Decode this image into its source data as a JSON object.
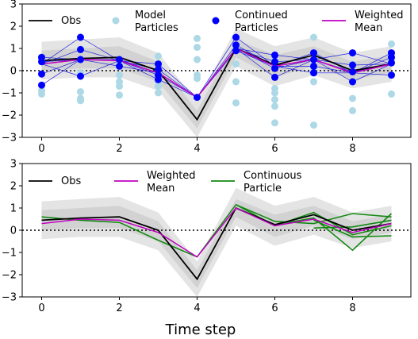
{
  "xlabel": "Time step",
  "chart_data": [
    {
      "type": "line",
      "x_ticks": [
        0,
        2,
        4,
        6,
        8
      ],
      "y_ticks": [
        -3,
        -2,
        -1,
        0,
        1,
        2,
        3
      ],
      "xlim": [
        -0.5,
        9.5
      ],
      "ylim": [
        -3,
        3
      ],
      "zero_line": "dotted",
      "legend": [
        {
          "key": "obs",
          "label": "Obs"
        },
        {
          "key": "model",
          "label": "Model\nParticles"
        },
        {
          "key": "continued",
          "label": "Continued\nParticles"
        },
        {
          "key": "weighted",
          "label": "Weighted\nMean"
        }
      ],
      "x": [
        0,
        1,
        2,
        3,
        4,
        5,
        6,
        7,
        8,
        9
      ],
      "series": [
        {
          "key": "obs",
          "color": "#000000",
          "values": [
            0.45,
            0.55,
            0.6,
            0.0,
            -2.2,
            1.0,
            0.25,
            0.7,
            0.0,
            0.3
          ]
        },
        {
          "key": "weighted",
          "color": "#c000c0",
          "values": [
            0.3,
            0.5,
            0.45,
            -0.1,
            -1.2,
            1.0,
            0.2,
            0.5,
            -0.1,
            0.3
          ]
        }
      ],
      "band": {
        "lower": [
          -0.4,
          -0.3,
          -0.3,
          -0.9,
          -3.0,
          0.2,
          -0.7,
          -0.2,
          -0.8,
          -0.5
        ],
        "upper": [
          1.3,
          1.4,
          1.5,
          0.8,
          -1.4,
          1.9,
          1.1,
          1.5,
          0.8,
          1.1
        ]
      },
      "band_inner": {
        "lower": [
          0.0,
          0.1,
          0.1,
          -0.5,
          -2.6,
          0.6,
          -0.3,
          0.2,
          -0.4,
          -0.1
        ],
        "upper": [
          0.9,
          1.0,
          1.1,
          0.4,
          -1.8,
          1.4,
          0.7,
          1.1,
          0.4,
          0.7
        ]
      },
      "model_particles": [
        [
          0,
          -0.9
        ],
        [
          0,
          -1.05
        ],
        [
          0,
          0.5
        ],
        [
          0,
          0.55
        ],
        [
          0,
          0.6
        ],
        [
          1,
          -0.1
        ],
        [
          1,
          -0.95
        ],
        [
          1,
          -1.25
        ],
        [
          1,
          -1.35
        ],
        [
          1,
          0.5
        ],
        [
          2,
          -0.2
        ],
        [
          2,
          -0.5
        ],
        [
          2,
          -0.7
        ],
        [
          2,
          -1.1
        ],
        [
          2,
          0.3
        ],
        [
          2,
          0.5
        ],
        [
          3,
          -0.2
        ],
        [
          3,
          -0.5
        ],
        [
          3,
          -0.7
        ],
        [
          3,
          -1.0
        ],
        [
          3,
          0.3
        ],
        [
          3,
          0.65
        ],
        [
          4,
          -0.2
        ],
        [
          4,
          -0.35
        ],
        [
          4,
          0.5
        ],
        [
          4,
          1.05
        ],
        [
          4,
          1.45
        ],
        [
          5,
          -0.5
        ],
        [
          5,
          -1.45
        ],
        [
          5,
          0.3
        ],
        [
          5,
          1.05
        ],
        [
          6,
          -0.8
        ],
        [
          6,
          -1.0
        ],
        [
          6,
          -1.3
        ],
        [
          6,
          -1.6
        ],
        [
          6,
          -2.35
        ],
        [
          6,
          0.45
        ],
        [
          7,
          -0.5
        ],
        [
          7,
          -2.45
        ],
        [
          7,
          0.1
        ],
        [
          7,
          1.5
        ],
        [
          8,
          -1.25
        ],
        [
          8,
          -1.8
        ],
        [
          8,
          0.3
        ],
        [
          8,
          0.8
        ],
        [
          9,
          -1.05
        ],
        [
          9,
          0.5
        ],
        [
          9,
          1.2
        ]
      ],
      "continued_particles": [
        [
          0,
          -0.15
        ],
        [
          0,
          -0.65
        ],
        [
          0,
          0.6
        ],
        [
          0,
          0.4
        ],
        [
          1,
          1.5
        ],
        [
          1,
          0.95
        ],
        [
          1,
          0.5
        ],
        [
          1,
          -0.25
        ],
        [
          2,
          0.5
        ],
        [
          2,
          0.2
        ],
        [
          3,
          0.3
        ],
        [
          3,
          0.05
        ],
        [
          3,
          -0.2
        ],
        [
          3,
          -0.4
        ],
        [
          4,
          -1.2
        ],
        [
          5,
          1.5
        ],
        [
          5,
          1.15
        ],
        [
          5,
          0.9
        ],
        [
          6,
          0.7
        ],
        [
          6,
          0.4
        ],
        [
          6,
          0.1
        ],
        [
          6,
          -0.3
        ],
        [
          7,
          0.8
        ],
        [
          7,
          0.5
        ],
        [
          7,
          0.2
        ],
        [
          7,
          -0.1
        ],
        [
          8,
          0.8
        ],
        [
          8,
          0.25
        ],
        [
          8,
          -0.05
        ],
        [
          8,
          -0.5
        ],
        [
          9,
          0.8
        ],
        [
          9,
          0.6
        ],
        [
          9,
          0.35
        ],
        [
          9,
          -0.2
        ]
      ]
    },
    {
      "type": "line",
      "x_ticks": [
        0,
        2,
        4,
        6,
        8
      ],
      "y_ticks": [
        -3,
        -2,
        -1,
        0,
        1,
        2,
        3
      ],
      "xlim": [
        -0.5,
        9.5
      ],
      "ylim": [
        -3,
        3
      ],
      "zero_line": "dotted",
      "legend": [
        {
          "key": "obs",
          "label": "Obs"
        },
        {
          "key": "weighted",
          "label": "Weighted\nMean"
        },
        {
          "key": "continuous",
          "label": "Continuous\nParticle"
        }
      ],
      "x": [
        0,
        1,
        2,
        3,
        4,
        5,
        6,
        7,
        8,
        9
      ],
      "series": [
        {
          "key": "obs",
          "color": "#000000",
          "values": [
            0.45,
            0.55,
            0.6,
            0.0,
            -2.2,
            1.0,
            0.25,
            0.7,
            0.0,
            0.3
          ]
        },
        {
          "key": "weighted",
          "color": "#c000c0",
          "values": [
            0.3,
            0.5,
            0.45,
            -0.1,
            -1.2,
            1.0,
            0.2,
            0.5,
            -0.1,
            0.3
          ]
        }
      ],
      "continuous_lines": [
        {
          "x": [
            0,
            1,
            2,
            3,
            4,
            5,
            6,
            7,
            8,
            9
          ],
          "values": [
            0.6,
            0.45,
            0.35,
            -0.45,
            -1.2,
            1.15,
            0.4,
            0.3,
            0.75,
            0.6
          ]
        },
        {
          "x": [
            5,
            6,
            7,
            8,
            9
          ],
          "values": [
            1.15,
            0.2,
            0.8,
            -0.2,
            0.2
          ]
        },
        {
          "x": [
            6,
            7,
            8,
            9
          ],
          "values": [
            0.25,
            0.55,
            -0.9,
            0.75
          ]
        },
        {
          "x": [
            7,
            8,
            9
          ],
          "values": [
            0.45,
            -0.3,
            -0.25
          ]
        },
        {
          "x": [
            7,
            8,
            9
          ],
          "values": [
            0.1,
            0.15,
            0.45
          ]
        }
      ],
      "band": {
        "lower": [
          -0.4,
          -0.3,
          -0.3,
          -0.9,
          -3.0,
          0.2,
          -0.7,
          -0.2,
          -0.8,
          -0.5
        ],
        "upper": [
          1.3,
          1.4,
          1.5,
          0.8,
          -1.4,
          1.9,
          1.1,
          1.5,
          0.8,
          1.1
        ]
      },
      "band_inner": {
        "lower": [
          0.0,
          0.1,
          0.1,
          -0.5,
          -2.6,
          0.6,
          -0.3,
          0.2,
          -0.4,
          -0.1
        ],
        "upper": [
          0.9,
          1.0,
          1.1,
          0.4,
          -1.8,
          1.4,
          0.7,
          1.1,
          0.4,
          0.7
        ]
      }
    }
  ]
}
